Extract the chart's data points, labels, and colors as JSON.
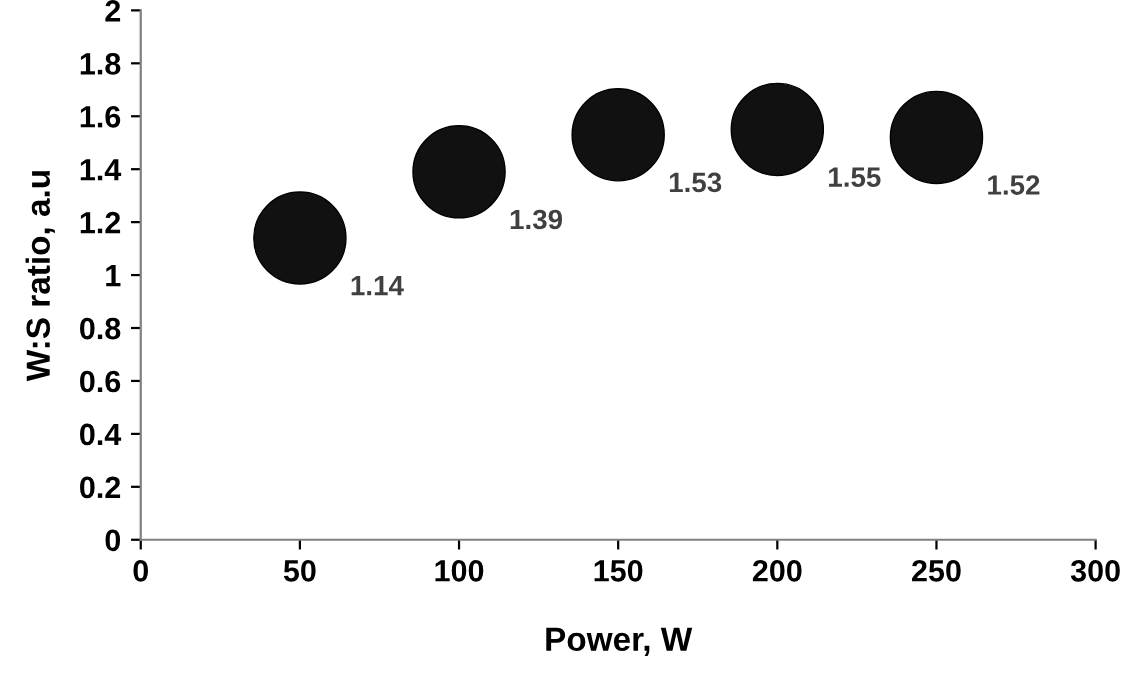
{
  "chart_data": {
    "type": "scatter",
    "xlabel": "Power, W",
    "ylabel": "W:S ratio, a.u",
    "x": [
      50,
      100,
      150,
      200,
      250
    ],
    "values": [
      1.14,
      1.39,
      1.53,
      1.55,
      1.52
    ],
    "color": "#111111",
    "marker": "circle",
    "data_labels": true,
    "xlim": [
      0,
      300
    ],
    "xticks": [
      0,
      50,
      100,
      150,
      200,
      250,
      300
    ],
    "ylim": [
      0,
      2
    ],
    "yticks": [
      0,
      0.2,
      0.4,
      0.6,
      0.8,
      1,
      1.2,
      1.4,
      1.6,
      1.8,
      2
    ],
    "grid": false,
    "legend": false
  }
}
